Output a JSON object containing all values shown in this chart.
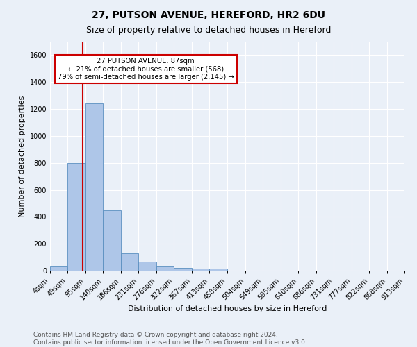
{
  "title": "27, PUTSON AVENUE, HEREFORD, HR2 6DU",
  "subtitle": "Size of property relative to detached houses in Hereford",
  "xlabel": "Distribution of detached houses by size in Hereford",
  "ylabel": "Number of detached properties",
  "footnote1": "Contains HM Land Registry data © Crown copyright and database right 2024.",
  "footnote2": "Contains public sector information licensed under the Open Government Licence v3.0.",
  "bin_edges": [
    4,
    49,
    95,
    140,
    186,
    231,
    276,
    322,
    367,
    413,
    458,
    504,
    549,
    595,
    640,
    686,
    731,
    777,
    822,
    868,
    913
  ],
  "bar_heights": [
    30,
    800,
    1240,
    450,
    130,
    65,
    30,
    20,
    15,
    15,
    0,
    0,
    0,
    0,
    0,
    0,
    0,
    0,
    0,
    0
  ],
  "bar_color": "#aec6e8",
  "bar_edge_color": "#5a8fc0",
  "x_tick_labels": [
    "4sqm",
    "49sqm",
    "95sqm",
    "140sqm",
    "186sqm",
    "231sqm",
    "276sqm",
    "322sqm",
    "367sqm",
    "413sqm",
    "458sqm",
    "504sqm",
    "549sqm",
    "595sqm",
    "640sqm",
    "686sqm",
    "731sqm",
    "777sqm",
    "822sqm",
    "868sqm",
    "913sqm"
  ],
  "ylim": [
    0,
    1700
  ],
  "yticks": [
    0,
    200,
    400,
    600,
    800,
    1000,
    1200,
    1400,
    1600
  ],
  "red_line_x": 87,
  "annotation_title": "27 PUTSON AVENUE: 87sqm",
  "annotation_line1": "← 21% of detached houses are smaller (568)",
  "annotation_line2": "79% of semi-detached houses are larger (2,145) →",
  "annotation_box_color": "#ffffff",
  "annotation_border_color": "#cc0000",
  "red_line_color": "#cc0000",
  "bg_color": "#eaf0f8",
  "grid_color": "#ffffff",
  "title_fontsize": 10,
  "subtitle_fontsize": 9,
  "axis_label_fontsize": 8,
  "tick_fontsize": 7,
  "footnote_fontsize": 6.5
}
